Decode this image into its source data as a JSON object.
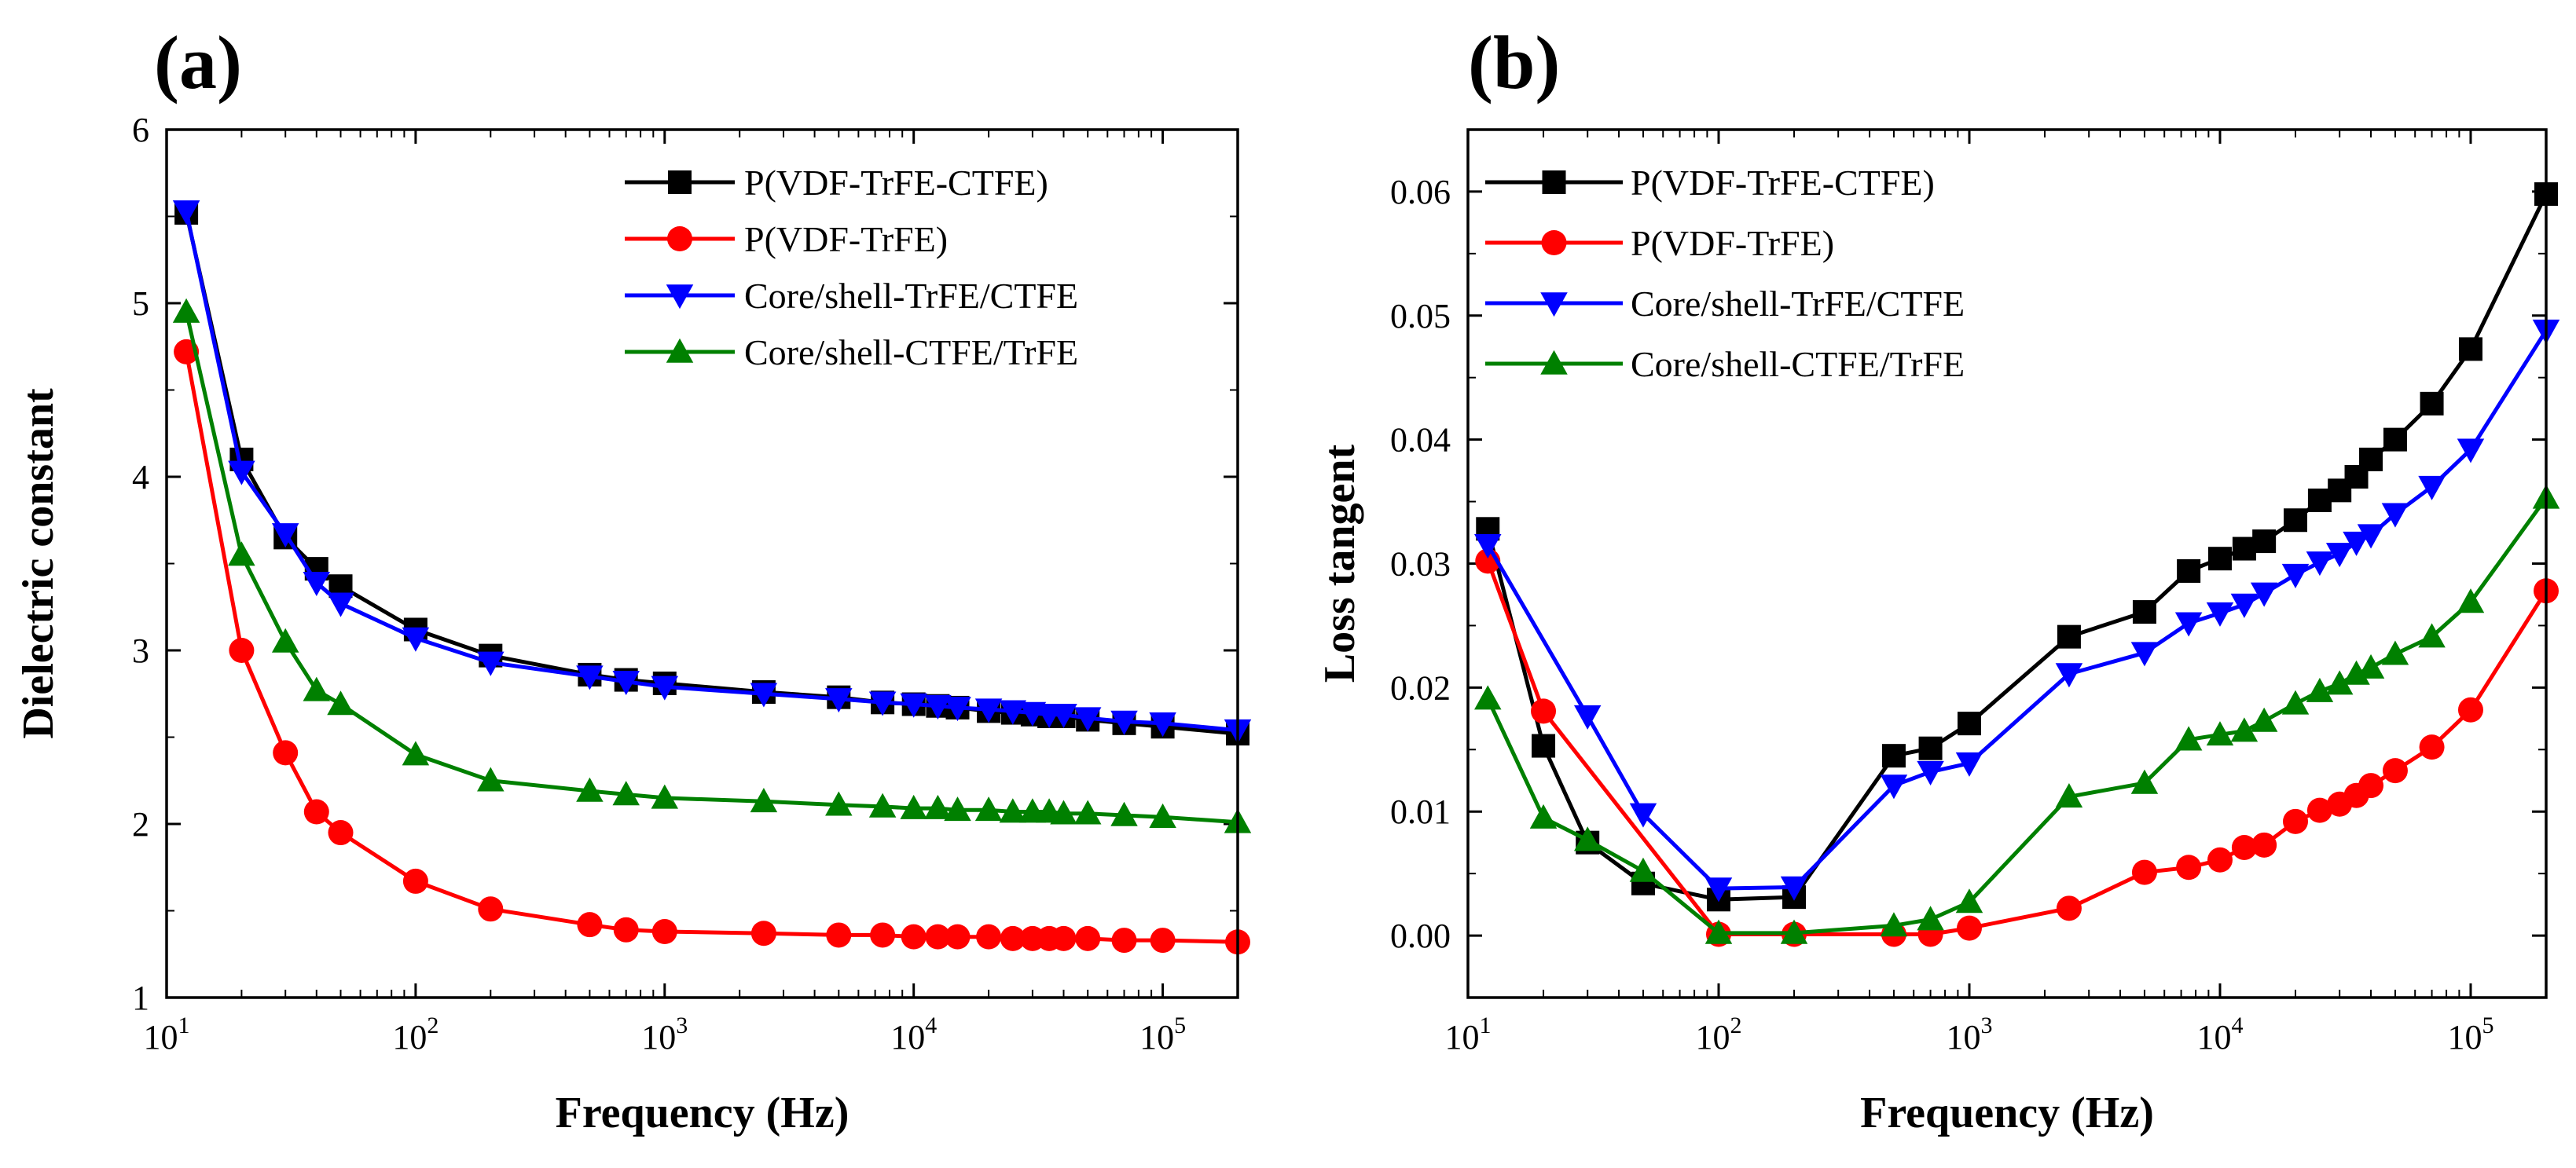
{
  "colors": {
    "terpolymer": "#000000",
    "copolymer": "#ff0000",
    "core_shell_trfe_ctfe": "#0000ff",
    "core_shell_ctfe_trfe": "#008000"
  },
  "chart_data": [
    {
      "type": "line",
      "panel_label": "(a)",
      "title": "",
      "xlabel": "Frequency (Hz)",
      "ylabel": "Dielectric constant",
      "xscale": "log",
      "xlim": [
        10,
        200000
      ],
      "ylim": [
        1,
        6
      ],
      "xticks": [
        10,
        100,
        1000,
        10000,
        100000
      ],
      "xtick_labels": [
        {
          "base": "10",
          "exp": "1"
        },
        {
          "base": "10",
          "exp": "2"
        },
        {
          "base": "10",
          "exp": "3"
        },
        {
          "base": "10",
          "exp": "4"
        },
        {
          "base": "10",
          "exp": "5"
        }
      ],
      "yticks": [
        1,
        2,
        3,
        4,
        5,
        6
      ],
      "ytick_labels": [
        "1",
        "2",
        "3",
        "4",
        "5",
        "6"
      ],
      "legend_position": "top-right",
      "series": [
        {
          "name": "P(VDF-TrFE-CTFE)",
          "color": "#000000",
          "marker": "square",
          "x": [
            12,
            20,
            30,
            40,
            50,
            100,
            200,
            500,
            700,
            1000,
            2500,
            5000,
            7500,
            10000,
            12500,
            15000,
            20000,
            25000,
            30000,
            35000,
            40000,
            50000,
            70000,
            100000,
            200000
          ],
          "y": [
            5.52,
            4.1,
            3.65,
            3.47,
            3.37,
            3.12,
            2.97,
            2.86,
            2.83,
            2.81,
            2.76,
            2.73,
            2.7,
            2.69,
            2.68,
            2.67,
            2.65,
            2.64,
            2.63,
            2.62,
            2.62,
            2.6,
            2.58,
            2.56,
            2.52
          ]
        },
        {
          "name": "P(VDF-TrFE)",
          "color": "#ff0000",
          "marker": "circle",
          "x": [
            12,
            20,
            30,
            40,
            50,
            100,
            200,
            500,
            700,
            1000,
            2500,
            5000,
            7500,
            10000,
            12500,
            15000,
            20000,
            25000,
            30000,
            35000,
            40000,
            50000,
            70000,
            100000,
            200000
          ],
          "y": [
            4.72,
            3.0,
            2.41,
            2.07,
            1.95,
            1.67,
            1.51,
            1.42,
            1.39,
            1.38,
            1.37,
            1.36,
            1.36,
            1.35,
            1.35,
            1.35,
            1.35,
            1.34,
            1.34,
            1.34,
            1.34,
            1.34,
            1.33,
            1.33,
            1.32
          ]
        },
        {
          "name": "Core/shell-TrFE/CTFE",
          "color": "#0000ff",
          "marker": "triangle-down",
          "x": [
            12,
            20,
            30,
            40,
            50,
            100,
            200,
            500,
            700,
            1000,
            2500,
            5000,
            7500,
            10000,
            12500,
            15000,
            20000,
            25000,
            30000,
            35000,
            40000,
            50000,
            70000,
            100000,
            200000
          ],
          "y": [
            5.53,
            4.03,
            3.67,
            3.39,
            3.27,
            3.07,
            2.93,
            2.85,
            2.82,
            2.79,
            2.75,
            2.72,
            2.7,
            2.69,
            2.68,
            2.67,
            2.66,
            2.65,
            2.64,
            2.63,
            2.63,
            2.61,
            2.59,
            2.58,
            2.54
          ]
        },
        {
          "name": "Core/shell-CTFE/TrFE",
          "color": "#008000",
          "marker": "triangle-up",
          "x": [
            12,
            20,
            30,
            40,
            50,
            100,
            200,
            500,
            700,
            1000,
            2500,
            5000,
            7500,
            10000,
            12500,
            15000,
            20000,
            25000,
            30000,
            35000,
            40000,
            50000,
            70000,
            100000,
            200000
          ],
          "y": [
            4.95,
            3.55,
            3.05,
            2.77,
            2.69,
            2.4,
            2.25,
            2.19,
            2.17,
            2.15,
            2.13,
            2.11,
            2.1,
            2.09,
            2.09,
            2.08,
            2.08,
            2.07,
            2.07,
            2.07,
            2.06,
            2.06,
            2.05,
            2.04,
            2.01
          ]
        }
      ]
    },
    {
      "type": "line",
      "panel_label": "(b)",
      "title": "",
      "xlabel": "Frequency (Hz)",
      "ylabel": "Loss tangent",
      "xscale": "log",
      "xlim": [
        10,
        200000
      ],
      "ylim": [
        -0.005,
        0.065
      ],
      "xticks": [
        10,
        100,
        1000,
        10000,
        100000
      ],
      "xtick_labels": [
        {
          "base": "10",
          "exp": "1"
        },
        {
          "base": "10",
          "exp": "2"
        },
        {
          "base": "10",
          "exp": "3"
        },
        {
          "base": "10",
          "exp": "4"
        },
        {
          "base": "10",
          "exp": "5"
        }
      ],
      "yticks": [
        0,
        0.01,
        0.02,
        0.03,
        0.04,
        0.05,
        0.06
      ],
      "ytick_labels": [
        "0.00",
        "0.01",
        "0.02",
        "0.03",
        "0.04",
        "0.05",
        "0.06"
      ],
      "legend_position": "top-left",
      "series": [
        {
          "name": "P(VDF-TrFE-CTFE)",
          "color": "#000000",
          "marker": "square",
          "x": [
            12,
            20,
            30,
            50,
            100,
            200,
            500,
            700,
            1000,
            2500,
            5000,
            7500,
            10000,
            12500,
            15000,
            20000,
            25000,
            30000,
            35000,
            40000,
            50000,
            70000,
            100000,
            200000
          ],
          "y": [
            0.0328,
            0.0153,
            0.0075,
            0.0042,
            0.0029,
            0.0031,
            0.0145,
            0.0151,
            0.0171,
            0.0241,
            0.0261,
            0.0294,
            0.0304,
            0.0312,
            0.0318,
            0.0335,
            0.0351,
            0.0359,
            0.037,
            0.0384,
            0.04,
            0.0429,
            0.0473,
            0.0598
          ]
        },
        {
          "name": "P(VDF-TrFE)",
          "color": "#ff0000",
          "marker": "circle",
          "x": [
            12,
            20,
            100,
            200,
            500,
            700,
            1000,
            2500,
            5000,
            7500,
            10000,
            12500,
            15000,
            20000,
            25000,
            30000,
            35000,
            40000,
            50000,
            70000,
            100000,
            200000
          ],
          "y": [
            0.0302,
            0.0181,
            0.0001,
            0.0001,
            0.0001,
            0.0001,
            0.0006,
            0.0022,
            0.0051,
            0.0055,
            0.0061,
            0.0071,
            0.0073,
            0.0092,
            0.0101,
            0.0106,
            0.0113,
            0.0121,
            0.0133,
            0.0152,
            0.0182,
            0.0278
          ]
        },
        {
          "name": "Core/shell-TrFE/CTFE",
          "color": "#0000ff",
          "marker": "triangle-down",
          "x": [
            12,
            30,
            50,
            100,
            200,
            500,
            700,
            1000,
            2500,
            5000,
            7500,
            10000,
            12500,
            15000,
            20000,
            25000,
            30000,
            35000,
            40000,
            50000,
            70000,
            100000,
            200000
          ],
          "y": [
            0.0315,
            0.0177,
            0.0098,
            0.0038,
            0.0039,
            0.0121,
            0.0132,
            0.0139,
            0.0211,
            0.0228,
            0.0252,
            0.026,
            0.0267,
            0.0276,
            0.0291,
            0.0301,
            0.0308,
            0.0317,
            0.0323,
            0.034,
            0.0362,
            0.0392,
            0.0488
          ]
        },
        {
          "name": "Core/shell-CTFE/TrFE",
          "color": "#008000",
          "marker": "triangle-up",
          "x": [
            12,
            20,
            30,
            50,
            100,
            200,
            500,
            700,
            1000,
            2500,
            5000,
            7500,
            10000,
            12500,
            15000,
            20000,
            25000,
            30000,
            35000,
            40000,
            50000,
            70000,
            100000,
            200000
          ],
          "y": [
            0.0191,
            0.0095,
            0.0077,
            0.0052,
            0.0002,
            0.0002,
            0.0008,
            0.0013,
            0.0027,
            0.0112,
            0.0123,
            0.0158,
            0.0162,
            0.0165,
            0.0173,
            0.0187,
            0.0197,
            0.0203,
            0.0211,
            0.0216,
            0.0227,
            0.0241,
            0.0269,
            0.0353
          ]
        }
      ]
    }
  ]
}
